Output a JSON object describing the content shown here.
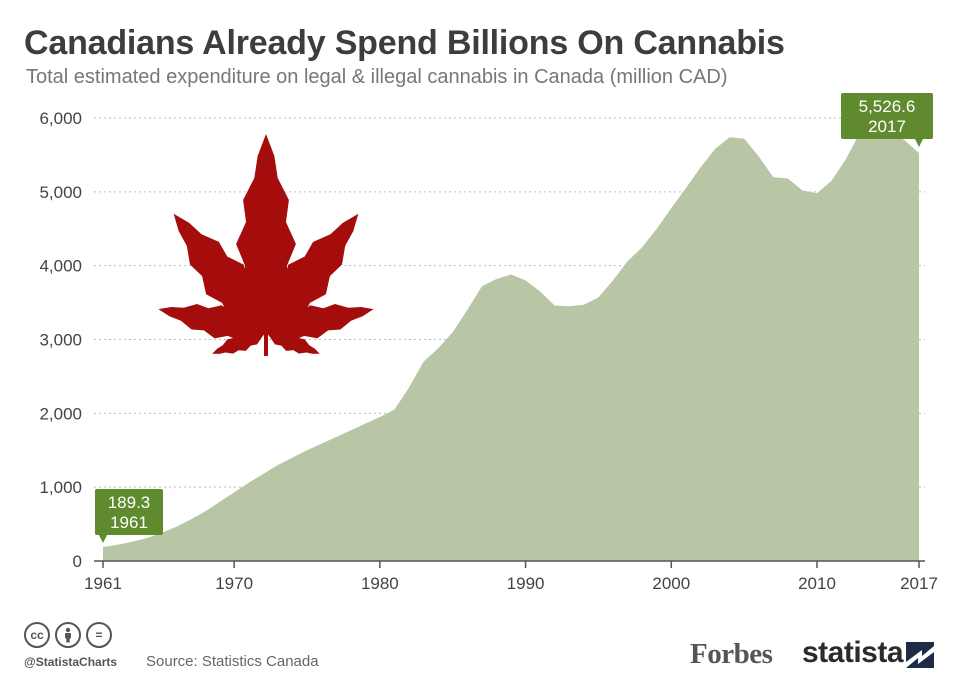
{
  "header": {
    "title": "Canadians Already Spend Billions On Cannabis",
    "subtitle": "Total estimated expenditure on legal & illegal cannabis in Canada (million CAD)"
  },
  "chart_data": {
    "type": "area",
    "title": "Canadians Already Spend Billions On Cannabis",
    "subtitle": "Total estimated expenditure on legal & illegal cannabis in Canada (million CAD)",
    "xlabel": "",
    "ylabel": "",
    "xlim": [
      1961,
      2017
    ],
    "ylim": [
      0,
      6000
    ],
    "grid": true,
    "yticks": [
      0,
      1000,
      2000,
      3000,
      4000,
      5000,
      6000
    ],
    "ytick_labels": [
      "0",
      "1,000",
      "2,000",
      "3,000",
      "4,000",
      "5,000",
      "6,000"
    ],
    "xticks": [
      1961,
      1970,
      1980,
      1990,
      2000,
      2010,
      2017
    ],
    "xtick_labels": [
      "1961",
      "1970",
      "1980",
      "1990",
      "2000",
      "2010",
      "2017"
    ],
    "area_color": "#b8c6a6",
    "series": [
      {
        "name": "Expenditure (million CAD)",
        "x": [
          1961,
          1962,
          1963,
          1964,
          1965,
          1966,
          1967,
          1968,
          1969,
          1970,
          1971,
          1972,
          1973,
          1974,
          1975,
          1976,
          1977,
          1978,
          1979,
          1980,
          1981,
          1982,
          1983,
          1984,
          1985,
          1986,
          1987,
          1988,
          1989,
          1990,
          1991,
          1992,
          1993,
          1994,
          1995,
          1996,
          1997,
          1998,
          1999,
          2000,
          2001,
          2002,
          2003,
          2004,
          2005,
          2006,
          2007,
          2008,
          2009,
          2010,
          2011,
          2012,
          2013,
          2014,
          2015,
          2016,
          2017
        ],
        "values": [
          189.3,
          220,
          260,
          310,
          380,
          460,
          560,
          670,
          800,
          930,
          1060,
          1180,
          1300,
          1400,
          1500,
          1590,
          1680,
          1770,
          1860,
          1950,
          2050,
          2350,
          2700,
          2880,
          3100,
          3400,
          3720,
          3820,
          3880,
          3800,
          3650,
          3460,
          3450,
          3470,
          3570,
          3800,
          4060,
          4250,
          4500,
          4780,
          5050,
          5330,
          5580,
          5740,
          5720,
          5480,
          5200,
          5180,
          5020,
          4980,
          5150,
          5450,
          5820,
          5870,
          5800,
          5700,
          5526.6
        ]
      }
    ],
    "annotations": [
      {
        "label": "189.3",
        "year_label": "1961",
        "x": 1961,
        "y": 189.3,
        "color": "#5f8a2e"
      },
      {
        "label": "5,526.6",
        "year_label": "2017",
        "x": 2017,
        "y": 5526.6,
        "color": "#5f8a2e"
      }
    ]
  },
  "decoration": {
    "leaf_icon_color": "#a50d0d"
  },
  "footer": {
    "cc_icons": [
      "cc",
      "by",
      "="
    ],
    "handle": "@StatistaCharts",
    "source": "Source: Statistics Canada",
    "partner_logo": "Forbes",
    "brand_logo": "statista"
  }
}
